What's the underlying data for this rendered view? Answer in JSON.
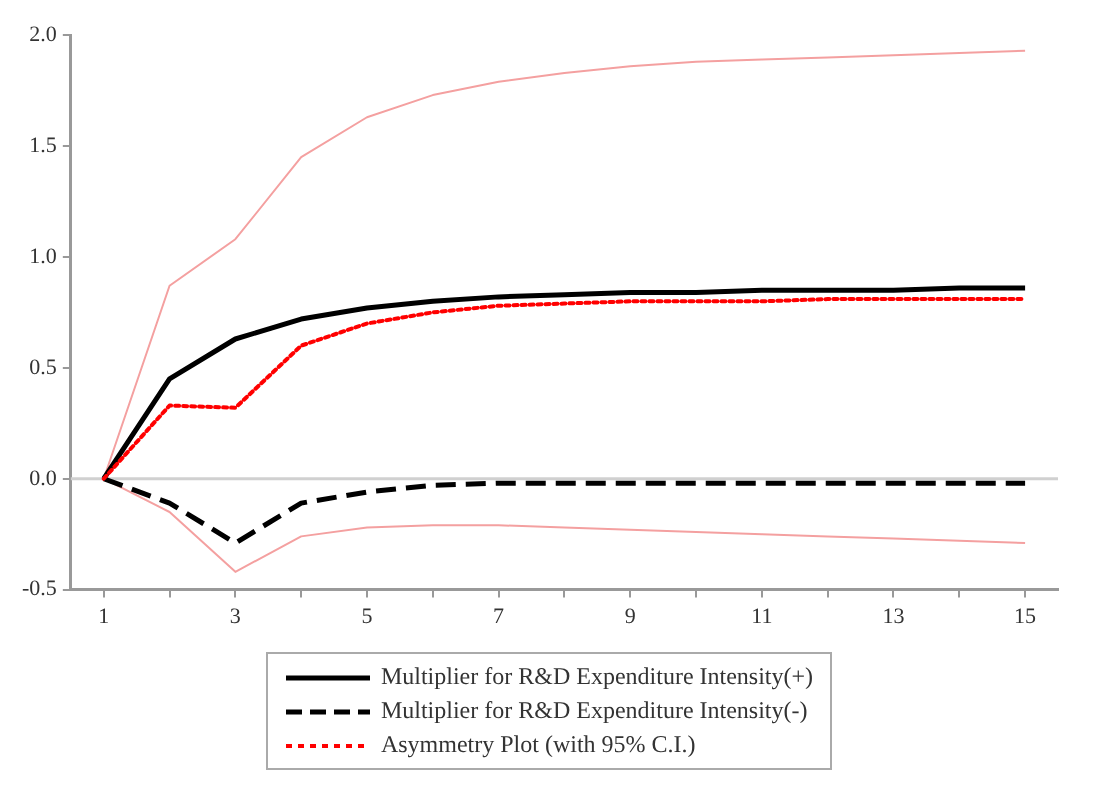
{
  "chart_data": {
    "type": "line",
    "x": [
      1,
      2,
      3,
      4,
      5,
      6,
      7,
      8,
      9,
      10,
      11,
      12,
      13,
      14,
      15
    ],
    "series": [
      {
        "name": "Multiplier for R&D Expenditure Intensity(+)",
        "color": "#000000",
        "line_style": "solid",
        "values": [
          0,
          0.45,
          0.63,
          0.72,
          0.77,
          0.8,
          0.82,
          0.83,
          0.84,
          0.84,
          0.85,
          0.85,
          0.85,
          0.86,
          0.86
        ]
      },
      {
        "name": "Multiplier for R&D Expenditure Intensity(-)",
        "color": "#000000",
        "line_style": "dashed",
        "values": [
          0,
          -0.11,
          -0.29,
          -0.11,
          -0.06,
          -0.03,
          -0.02,
          -0.02,
          -0.02,
          -0.02,
          -0.02,
          -0.02,
          -0.02,
          -0.02,
          -0.02
        ]
      },
      {
        "name": "Asymmetry Plot (with 95% C.I.)",
        "color": "#ff0000",
        "line_style": "dotted",
        "values": [
          0,
          0.33,
          0.32,
          0.6,
          0.7,
          0.75,
          0.78,
          0.79,
          0.8,
          0.8,
          0.8,
          0.81,
          0.81,
          0.81,
          0.81
        ]
      },
      {
        "color": "#f4a0a0",
        "line_style": "solid",
        "values": [
          0,
          0.87,
          1.08,
          1.45,
          1.63,
          1.73,
          1.79,
          1.83,
          1.86,
          1.88,
          1.89,
          1.9,
          1.91,
          1.92,
          1.93
        ]
      },
      {
        "color": "#f4a0a0",
        "line_style": "solid",
        "values": [
          0,
          -0.15,
          -0.42,
          -0.26,
          -0.22,
          -0.21,
          -0.21,
          -0.22,
          -0.23,
          -0.24,
          -0.25,
          -0.26,
          -0.27,
          -0.28,
          -0.29
        ]
      }
    ],
    "xlim": [
      0.5,
      15.5
    ],
    "xticks": [
      1,
      {
        "value": 2,
        "label": null
      },
      3,
      {
        "value": 4,
        "label": null
      },
      5,
      {
        "value": 6,
        "label": null
      },
      7,
      {
        "value": 8,
        "label": null
      },
      9,
      {
        "value": 10,
        "label": null
      },
      11,
      {
        "value": 12,
        "label": null
      },
      13,
      {
        "value": 14,
        "label": null
      },
      15
    ],
    "ylim": [
      -0.5,
      2.0
    ],
    "yticks": [
      {
        "value": -0.5,
        "label": "-0.5"
      },
      {
        "value": 0,
        "label": "0.0"
      },
      {
        "value": 0.5,
        "label": "0.5"
      },
      {
        "value": 1,
        "label": "1.0"
      },
      {
        "value": 1.5,
        "label": "1.5"
      },
      {
        "value": 2,
        "label": "2.0"
      }
    ],
    "ref_lines": [
      {
        "axis": "y",
        "value": 0,
        "color": "#d0d0d0"
      }
    ],
    "grid": false,
    "legend": "bottom",
    "marker": "none"
  }
}
